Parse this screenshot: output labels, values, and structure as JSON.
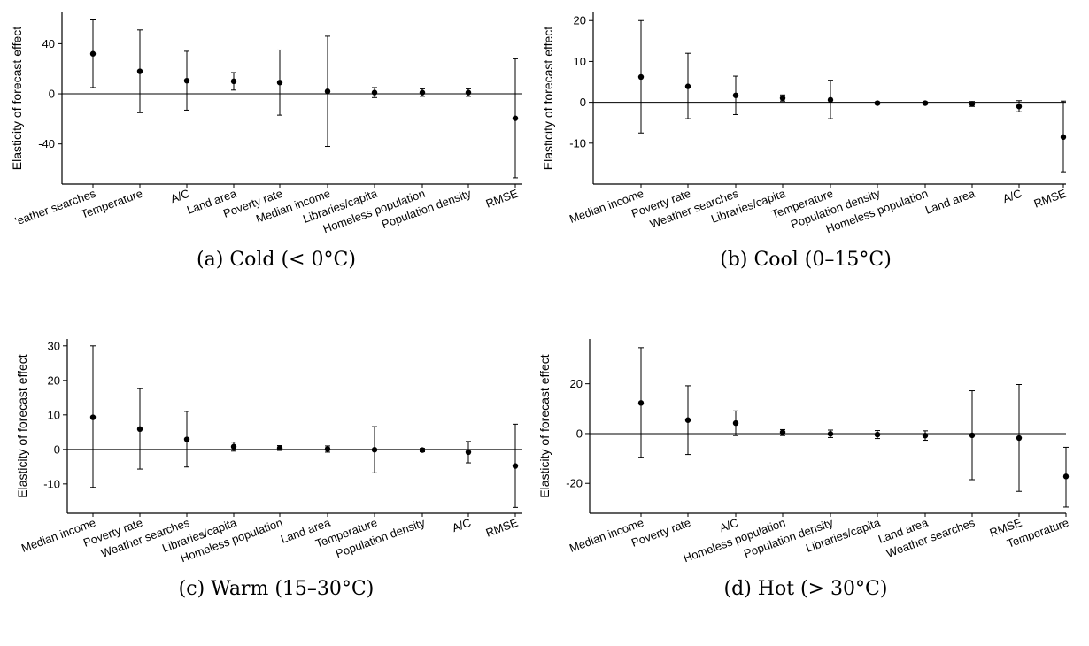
{
  "chart_data": [
    {
      "type": "errorbar",
      "caption": "(a) Cold (< 0°C)",
      "ylabel": "Elasticity of forecast effect",
      "ylim": [
        -72,
        65
      ],
      "yticks": [
        -40,
        0,
        40
      ],
      "yticklabels": [
        "-40",
        "0",
        "40"
      ],
      "reference_line": 0,
      "categories": [
        "Weather searches",
        "Temperature",
        "A/C",
        "Land area",
        "Poverty rate",
        "Median income",
        "Libraries/capita",
        "Homeless population",
        "Population density",
        "RMSE"
      ],
      "category_labels_shown": [
        "'eather searches",
        "Temperature",
        "A/C",
        "Land area",
        "Poverty rate",
        "Median income",
        "Libraries/capita",
        "Homeless population",
        "Population density",
        "RMSE"
      ],
      "values": [
        32,
        18,
        10.5,
        10,
        9,
        2,
        1,
        1,
        1,
        -19.5
      ],
      "lower": [
        5,
        -15,
        -13,
        3,
        -17,
        -42,
        -3,
        -2,
        -2,
        -67
      ],
      "upper": [
        59,
        51,
        34,
        17,
        35,
        46,
        5,
        4,
        4,
        28
      ]
    },
    {
      "type": "errorbar",
      "caption": "(b) Cool (0–15°C)",
      "ylabel": "Elasticity of forecast effect",
      "ylim": [
        -20,
        22
      ],
      "yticks": [
        -10,
        0,
        10,
        20
      ],
      "yticklabels": [
        "-10",
        "0",
        "10",
        "20"
      ],
      "reference_line": 0,
      "categories": [
        "Median income",
        "Poverty rate",
        "Weather searches",
        "Libraries/capita",
        "Temperature",
        "Population density",
        "Homeless population",
        "Land area",
        "A/C",
        "RMSE"
      ],
      "category_labels_shown": [
        "Median income",
        "Poverty rate",
        "Weather searches",
        "Libraries/capita",
        "Temperature",
        "Population density",
        "Homeless population",
        "Land area",
        "A/C",
        "RMSE"
      ],
      "values": [
        6.2,
        3.9,
        1.7,
        1.0,
        0.6,
        -0.2,
        -0.2,
        -0.4,
        -1.0,
        -8.5
      ],
      "lower": [
        -7.5,
        -4.0,
        -3.0,
        0.3,
        -4.0,
        -0.5,
        -0.5,
        -1.0,
        -2.3,
        -17.0
      ],
      "upper": [
        20,
        12,
        6.4,
        1.8,
        5.4,
        0.1,
        0.1,
        0.2,
        0.4,
        0.3
      ]
    },
    {
      "type": "errorbar",
      "caption": "(c) Warm (15–30°C)",
      "ylabel": "Elasticity of forecast effect",
      "ylim": [
        -18.5,
        32
      ],
      "yticks": [
        -10,
        0,
        10,
        20,
        30
      ],
      "yticklabels": [
        "-10",
        "0",
        "10",
        "20",
        "30"
      ],
      "reference_line": 0,
      "categories": [
        "Median income",
        "Poverty rate",
        "Weather searches",
        "Libraries/capita",
        "Homeless population",
        "Land area",
        "Temperature",
        "Population density",
        "A/C",
        "RMSE"
      ],
      "category_labels_shown": [
        "Median income",
        "Poverty rate",
        "Weather searches",
        "Libraries/capita",
        "Homeless population",
        "Land area",
        "Temperature",
        "Population density",
        "A/C",
        "RMSE"
      ],
      "values": [
        9.3,
        5.9,
        2.9,
        0.8,
        0.4,
        0.1,
        -0.1,
        -0.2,
        -0.8,
        -4.8
      ],
      "lower": [
        -11,
        -5.7,
        -5.1,
        -0.5,
        -0.3,
        -0.8,
        -6.8,
        -0.7,
        -3.9,
        -16.8
      ],
      "upper": [
        30,
        17.6,
        11,
        2.1,
        1.1,
        1.0,
        6.6,
        0.3,
        2.3,
        7.3
      ]
    },
    {
      "type": "errorbar",
      "caption": "(d) Hot (> 30°C)",
      "ylabel": "Elasticity of forecast effect",
      "ylim": [
        -32,
        38
      ],
      "yticks": [
        -20,
        0,
        20
      ],
      "yticklabels": [
        "-20",
        "0",
        "20"
      ],
      "reference_line": 0,
      "categories": [
        "Median income",
        "Poverty rate",
        "A/C",
        "Homeless population",
        "Population density",
        "Libraries/capita",
        "Land area",
        "Weather searches",
        "RMSE",
        "Temperature"
      ],
      "category_labels_shown": [
        "Median income",
        "Poverty rate",
        "A/C",
        "Homeless population",
        "Population density",
        "Libraries/capita",
        "Land area",
        "Weather searches",
        "RMSE",
        "Temperature"
      ],
      "values": [
        12.3,
        5.4,
        4.2,
        0.5,
        -0.1,
        -0.4,
        -0.8,
        -0.7,
        -1.8,
        -17.2
      ],
      "lower": [
        -9.5,
        -8.4,
        -0.8,
        -0.8,
        -1.6,
        -2.0,
        -2.7,
        -18.5,
        -23.2,
        -29.5
      ],
      "upper": [
        34.5,
        19.2,
        9.1,
        1.6,
        1.4,
        1.2,
        1.1,
        17.2,
        19.7,
        -5.5
      ]
    }
  ]
}
